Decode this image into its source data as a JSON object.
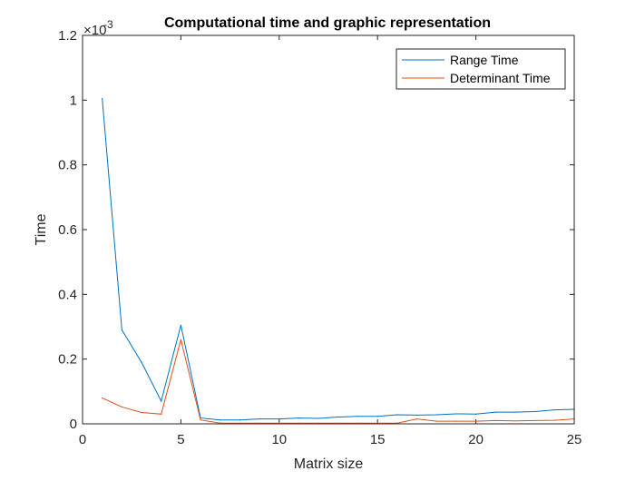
{
  "chart_data": {
    "type": "line",
    "title": "Computational time and graphic representation",
    "xlabel": "Matrix size",
    "ylabel": "Time",
    "xlim": [
      0,
      25
    ],
    "ylim": [
      0,
      0.0012
    ],
    "x_ticks": [
      0,
      5,
      10,
      15,
      20,
      25
    ],
    "y_ticks": [
      0,
      0.0002,
      0.0004,
      0.0006,
      0.0008,
      0.001,
      0.0012
    ],
    "y_tick_labels": [
      "0",
      "0.2",
      "0.4",
      "0.6",
      "0.8",
      "1",
      "1.2"
    ],
    "y_exponent_base": "×10",
    "y_exponent_power": "-3",
    "grid": false,
    "legend_position": "top-right",
    "x": [
      1,
      2,
      3,
      4,
      5,
      6,
      7,
      8,
      9,
      10,
      11,
      12,
      13,
      14,
      15,
      16,
      17,
      18,
      19,
      20,
      21,
      22,
      23,
      24,
      25
    ],
    "series": [
      {
        "name": "Range Time",
        "color": "#0072BD",
        "values": [
          0.001005,
          0.00029,
          0.00019,
          7e-05,
          0.000305,
          1.8e-05,
          1.2e-05,
          1.2e-05,
          1.5e-05,
          1.5e-05,
          1.8e-05,
          1.7e-05,
          2.1e-05,
          2.3e-05,
          2.3e-05,
          2.8e-05,
          2.7e-05,
          2.8e-05,
          3.1e-05,
          3e-05,
          3.6e-05,
          3.6e-05,
          3.8e-05,
          4.3e-05,
          4.5e-05
        ]
      },
      {
        "name": "Determinant Time",
        "color": "#D95319",
        "values": [
          8e-05,
          5.2e-05,
          3.5e-05,
          3e-05,
          0.00026,
          1.2e-05,
          2e-06,
          2e-06,
          2e-06,
          2e-06,
          2e-06,
          2e-06,
          2e-06,
          2e-06,
          2e-06,
          2e-06,
          1.5e-05,
          8e-06,
          8e-06,
          8e-06,
          1e-05,
          9e-06,
          1e-05,
          1.1e-05,
          1.5e-05
        ]
      }
    ]
  }
}
